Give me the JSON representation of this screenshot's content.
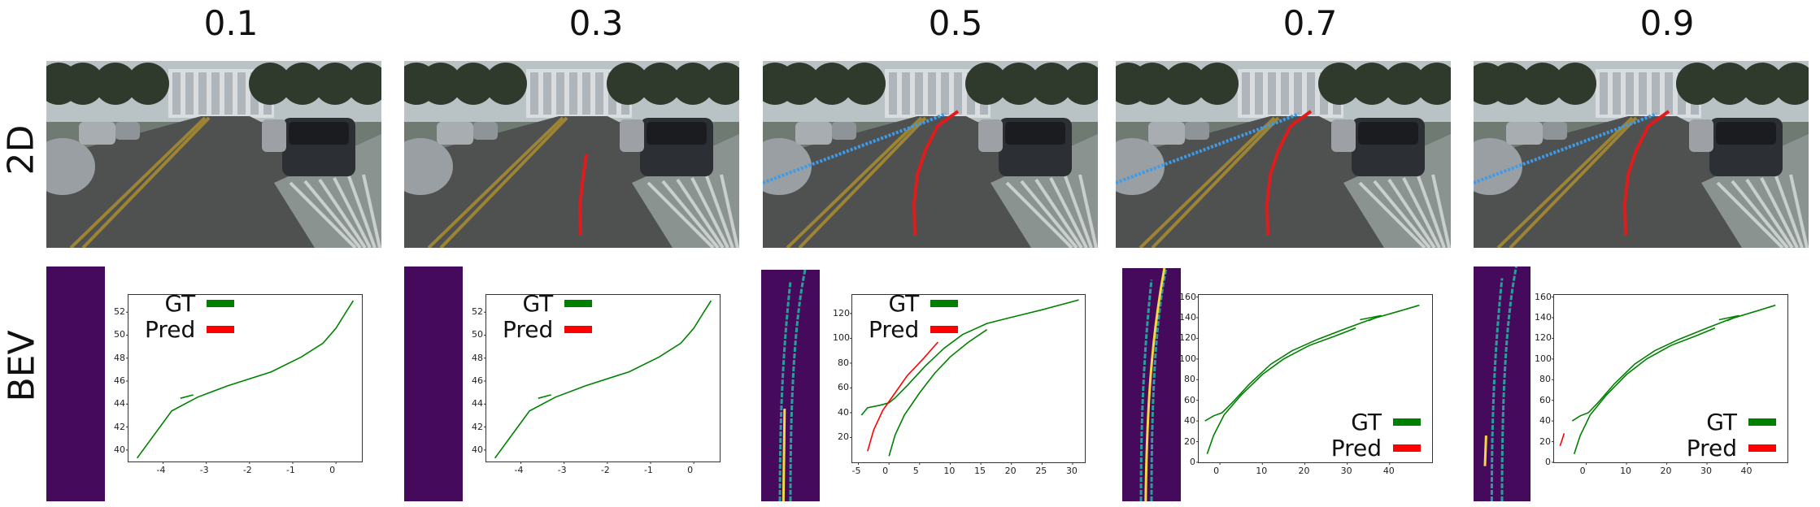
{
  "row_labels": {
    "top": "2D",
    "bottom": "BEV"
  },
  "columns": [
    {
      "title": "0.1",
      "cam": {
        "red_lane": false,
        "blue_lane": false
      },
      "bev": {
        "has_lanes": false
      },
      "legend": {
        "position": "top-left"
      }
    },
    {
      "title": "0.3",
      "cam": {
        "red_lane": true,
        "blue_lane": false
      },
      "bev": {
        "has_lanes": false
      },
      "legend": {
        "position": "top-left"
      }
    },
    {
      "title": "0.5",
      "cam": {
        "red_lane": true,
        "blue_lane": true
      },
      "bev": {
        "has_lanes": true
      },
      "legend": {
        "position": "top-left"
      }
    },
    {
      "title": "0.7",
      "cam": {
        "red_lane": true,
        "blue_lane": true
      },
      "bev": {
        "has_lanes": true
      },
      "legend": {
        "position": "bottom-right"
      }
    },
    {
      "title": "0.9",
      "cam": {
        "red_lane": true,
        "blue_lane": true
      },
      "bev": {
        "has_lanes": true
      },
      "legend": {
        "position": "bottom-right"
      }
    }
  ],
  "legend": {
    "gt_label": "GT",
    "pred_label": "Pred",
    "gt_color": "#008000",
    "pred_color": "#ff0000"
  },
  "colors": {
    "bev_background": "#450a5c",
    "bev_lane_cyan": "#2a9d9a",
    "bev_lane_yellow": "#f5d742"
  },
  "chart_data": [
    {
      "type": "line",
      "title": "0.1",
      "xlim": [
        -4.8,
        0.6
      ],
      "ylim": [
        39,
        53.5
      ],
      "xticks": [
        -4,
        -3,
        -2,
        -1,
        0
      ],
      "yticks": [
        40,
        42,
        44,
        46,
        48,
        50,
        52
      ],
      "series": [
        {
          "name": "GT",
          "color": "#008000",
          "points": [
            [
              -4.6,
              39.3
            ],
            [
              -3.8,
              43.4
            ],
            [
              -3.2,
              44.6
            ],
            [
              -2.5,
              45.6
            ],
            [
              -1.5,
              46.8
            ],
            [
              -0.8,
              48.1
            ],
            [
              -0.3,
              49.3
            ],
            [
              0.0,
              50.6
            ],
            [
              0.2,
              51.8
            ],
            [
              0.4,
              53.0
            ]
          ]
        },
        {
          "name": "GT",
          "color": "#008000",
          "points": [
            [
              -3.6,
              44.5
            ],
            [
              -3.3,
              44.8
            ]
          ]
        }
      ]
    },
    {
      "type": "line",
      "title": "0.3",
      "xlim": [
        -4.8,
        0.6
      ],
      "ylim": [
        39,
        53.5
      ],
      "xticks": [
        -4,
        -3,
        -2,
        -1,
        0
      ],
      "yticks": [
        40,
        42,
        44,
        46,
        48,
        50,
        52
      ],
      "series": [
        {
          "name": "GT",
          "color": "#008000",
          "points": [
            [
              -4.6,
              39.3
            ],
            [
              -3.8,
              43.4
            ],
            [
              -3.2,
              44.6
            ],
            [
              -2.5,
              45.6
            ],
            [
              -1.5,
              46.8
            ],
            [
              -0.8,
              48.1
            ],
            [
              -0.3,
              49.3
            ],
            [
              0.0,
              50.6
            ],
            [
              0.2,
              51.8
            ],
            [
              0.4,
              53.0
            ]
          ]
        },
        {
          "name": "GT",
          "color": "#008000",
          "points": [
            [
              -3.6,
              44.5
            ],
            [
              -3.3,
              44.8
            ]
          ]
        }
      ]
    },
    {
      "type": "line",
      "title": "0.5",
      "xlim": [
        -6,
        32
      ],
      "ylim": [
        0,
        135
      ],
      "xticks": [
        -5,
        0,
        5,
        10,
        15,
        20,
        25,
        30
      ],
      "yticks": [
        20,
        40,
        60,
        80,
        100,
        120
      ],
      "series": [
        {
          "name": "GT",
          "color": "#008000",
          "points": [
            [
              -4.5,
              38
            ],
            [
              -3.5,
              44
            ],
            [
              -1.5,
              46
            ],
            [
              0,
              48
            ],
            [
              1,
              52
            ],
            [
              3,
              62
            ],
            [
              6,
              78
            ],
            [
              9,
              92
            ],
            [
              12,
              103
            ],
            [
              16,
              112
            ],
            [
              20,
              117
            ],
            [
              25,
              123
            ],
            [
              31,
              131
            ]
          ]
        },
        {
          "name": "GT",
          "color": "#008000",
          "points": [
            [
              0,
              5
            ],
            [
              1,
              22
            ],
            [
              2.5,
              38
            ],
            [
              5,
              56
            ],
            [
              7.5,
              72
            ],
            [
              10,
              85
            ],
            [
              13,
              97
            ],
            [
              16,
              107
            ]
          ]
        },
        {
          "name": "Pred",
          "color": "#ff0000",
          "points": [
            [
              -3.5,
              9
            ],
            [
              -2.5,
              26
            ],
            [
              -1,
              42
            ],
            [
              1,
              56
            ],
            [
              3,
              70
            ],
            [
              5.5,
              83
            ],
            [
              8,
              97
            ]
          ]
        }
      ]
    },
    {
      "type": "line",
      "title": "0.7",
      "xlim": [
        -5,
        50
      ],
      "ylim": [
        0,
        162
      ],
      "xticks": [
        0,
        10,
        20,
        30,
        40
      ],
      "yticks": [
        0,
        20,
        40,
        60,
        80,
        100,
        120,
        140,
        160
      ],
      "series": [
        {
          "name": "GT",
          "color": "#008000",
          "points": [
            [
              -3.5,
              40
            ],
            [
              -1.5,
              45
            ],
            [
              0.5,
              48
            ],
            [
              3,
              58
            ],
            [
              7,
              76
            ],
            [
              12,
              95
            ],
            [
              17,
              108
            ],
            [
              23,
              119
            ],
            [
              30,
              130
            ],
            [
              36,
              139
            ],
            [
              42,
              146
            ],
            [
              47,
              152
            ]
          ]
        },
        {
          "name": "GT",
          "color": "#008000",
          "points": [
            [
              -3,
              8
            ],
            [
              -1.5,
              26
            ],
            [
              1,
              46
            ],
            [
              5,
              65
            ],
            [
              10,
              85
            ],
            [
              15,
              100
            ],
            [
              21,
              113
            ],
            [
              27,
              122
            ],
            [
              32,
              130
            ]
          ]
        },
        {
          "name": "GT",
          "color": "#008000",
          "points": [
            [
              33,
              138
            ],
            [
              38,
              142
            ],
            [
              35,
              137
            ]
          ]
        }
      ]
    },
    {
      "type": "line",
      "title": "0.9",
      "xlim": [
        -8,
        50
      ],
      "ylim": [
        0,
        162
      ],
      "xticks": [
        0,
        10,
        20,
        30,
        40
      ],
      "yticks": [
        0,
        20,
        40,
        60,
        80,
        100,
        120,
        140,
        160
      ],
      "series": [
        {
          "name": "GT",
          "color": "#008000",
          "points": [
            [
              -3.5,
              40
            ],
            [
              -1.5,
              45
            ],
            [
              0.5,
              48
            ],
            [
              3,
              58
            ],
            [
              7,
              76
            ],
            [
              12,
              95
            ],
            [
              17,
              108
            ],
            [
              23,
              119
            ],
            [
              30,
              130
            ],
            [
              36,
              139
            ],
            [
              42,
              146
            ],
            [
              47,
              152
            ]
          ]
        },
        {
          "name": "GT",
          "color": "#008000",
          "points": [
            [
              -3,
              8
            ],
            [
              -1.5,
              26
            ],
            [
              1,
              46
            ],
            [
              5,
              65
            ],
            [
              10,
              85
            ],
            [
              15,
              100
            ],
            [
              21,
              113
            ],
            [
              27,
              122
            ],
            [
              32,
              130
            ]
          ]
        },
        {
          "name": "GT",
          "color": "#008000",
          "points": [
            [
              33,
              138
            ],
            [
              38,
              142
            ],
            [
              35,
              137
            ]
          ]
        },
        {
          "name": "Pred",
          "color": "#ff0000",
          "points": [
            [
              -6.5,
              16
            ],
            [
              -5.5,
              28
            ]
          ]
        }
      ]
    }
  ]
}
